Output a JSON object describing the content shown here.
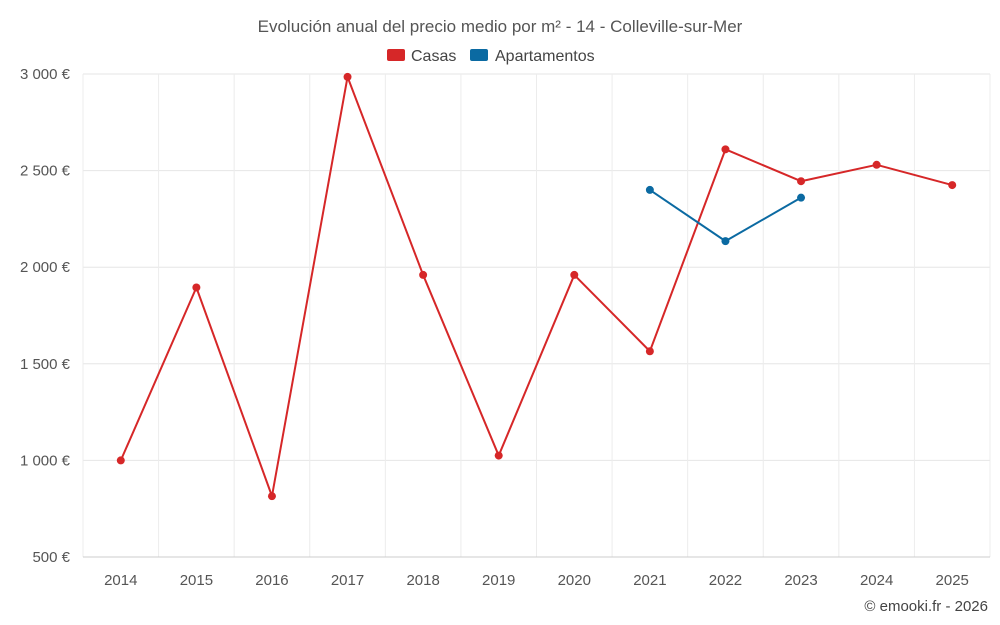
{
  "chart_data": {
    "type": "line",
    "title": "Evolución anual del precio medio por m² - 14 - Colleville-sur-Mer",
    "categories": [
      "2014",
      "2015",
      "2016",
      "2017",
      "2018",
      "2019",
      "2020",
      "2021",
      "2022",
      "2023",
      "2024",
      "2025"
    ],
    "y_tick_labels": [
      "500 €",
      "1 000 €",
      "1 500 €",
      "2 000 €",
      "2 500 €",
      "3 000 €"
    ],
    "y_ticks": [
      500,
      1000,
      1500,
      2000,
      2500,
      3000
    ],
    "ylim": [
      500,
      3000
    ],
    "series": [
      {
        "name": "Casas",
        "color": "#d62728",
        "values": [
          1000,
          1895,
          815,
          2985,
          1960,
          1025,
          1960,
          1565,
          2610,
          2445,
          2530,
          2425
        ]
      },
      {
        "name": "Apartamentos",
        "color": "#0b6aa2",
        "values": [
          null,
          null,
          null,
          null,
          null,
          null,
          null,
          2400,
          2135,
          2360,
          null,
          null
        ]
      }
    ],
    "grid": true,
    "legend_position": "top-center"
  },
  "credit": "© emooki.fr - 2026"
}
